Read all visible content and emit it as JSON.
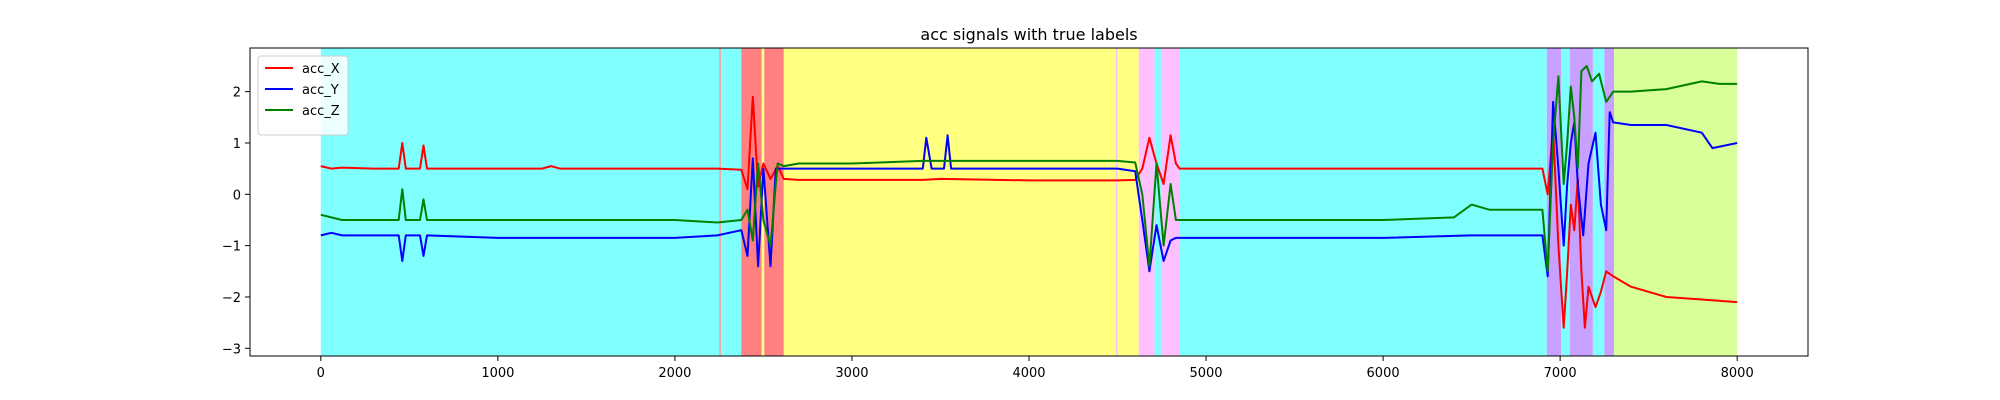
{
  "chart_data": {
    "type": "line",
    "title": "acc signals with true labels",
    "xlabel": "",
    "ylabel": "",
    "xlim": [
      -400,
      8400
    ],
    "ylim": [
      -3.15,
      2.85
    ],
    "x_ticks": [
      0,
      1000,
      2000,
      3000,
      4000,
      5000,
      6000,
      7000,
      8000
    ],
    "y_ticks": [
      -3,
      -2,
      -1,
      0,
      1,
      2
    ],
    "grid": false,
    "legend_position": "top-left",
    "label_bands": [
      {
        "start": 0,
        "end": 2250,
        "color": "#80ffff"
      },
      {
        "start": 2250,
        "end": 2260,
        "color": "#f4a0a0"
      },
      {
        "start": 2260,
        "end": 2375,
        "color": "#80ffff"
      },
      {
        "start": 2375,
        "end": 2490,
        "color": "#ff8080"
      },
      {
        "start": 2490,
        "end": 2505,
        "color": "#ffff80"
      },
      {
        "start": 2505,
        "end": 2615,
        "color": "#ff8080"
      },
      {
        "start": 2615,
        "end": 4490,
        "color": "#ffff80"
      },
      {
        "start": 4490,
        "end": 4500,
        "color": "#ffc0ff"
      },
      {
        "start": 4500,
        "end": 4620,
        "color": "#ffff80"
      },
      {
        "start": 4620,
        "end": 4710,
        "color": "#ffc0ff"
      },
      {
        "start": 4710,
        "end": 4745,
        "color": "#80ffff"
      },
      {
        "start": 4745,
        "end": 4850,
        "color": "#ffc0ff"
      },
      {
        "start": 4850,
        "end": 6925,
        "color": "#80ffff"
      },
      {
        "start": 6925,
        "end": 7005,
        "color": "#c8a0ff"
      },
      {
        "start": 7005,
        "end": 7055,
        "color": "#80ffff"
      },
      {
        "start": 7055,
        "end": 7185,
        "color": "#c8a0ff"
      },
      {
        "start": 7185,
        "end": 7250,
        "color": "#80ffff"
      },
      {
        "start": 7250,
        "end": 7305,
        "color": "#c8a0ff"
      },
      {
        "start": 7305,
        "end": 8000,
        "color": "#d8ff99"
      }
    ],
    "series": [
      {
        "name": "acc_X",
        "color": "#ff0000",
        "x": [
          0,
          60,
          120,
          300,
          440,
          460,
          480,
          560,
          580,
          600,
          1000,
          1250,
          1300,
          1350,
          2000,
          2240,
          2375,
          2410,
          2440,
          2470,
          2500,
          2540,
          2580,
          2615,
          2700,
          3000,
          3400,
          3500,
          4000,
          4500,
          4600,
          4640,
          4680,
          4720,
          4760,
          4800,
          4830,
          4850,
          5000,
          6000,
          6900,
          6930,
          6960,
          6990,
          7020,
          7040,
          7060,
          7080,
          7100,
          7120,
          7140,
          7160,
          7200,
          7230,
          7260,
          7300,
          7400,
          7600,
          7800,
          8000
        ],
        "y": [
          0.55,
          0.5,
          0.52,
          0.5,
          0.5,
          1.0,
          0.5,
          0.5,
          0.95,
          0.5,
          0.5,
          0.5,
          0.55,
          0.5,
          0.5,
          0.5,
          0.48,
          0.1,
          1.9,
          0.15,
          0.6,
          0.3,
          0.55,
          0.3,
          0.28,
          0.28,
          0.28,
          0.3,
          0.27,
          0.27,
          0.28,
          0.5,
          1.1,
          0.6,
          0.2,
          1.15,
          0.6,
          0.5,
          0.5,
          0.5,
          0.5,
          0.0,
          1.3,
          -1.0,
          -2.6,
          -1.5,
          -0.2,
          -0.7,
          0.3,
          -1.5,
          -2.6,
          -1.8,
          -2.2,
          -1.9,
          -1.5,
          -1.6,
          -1.8,
          -2.0,
          -2.05,
          -2.1
        ]
      },
      {
        "name": "acc_Y",
        "color": "#0000ff",
        "x": [
          0,
          60,
          120,
          300,
          440,
          460,
          480,
          560,
          580,
          600,
          1000,
          1300,
          2000,
          2240,
          2375,
          2410,
          2440,
          2470,
          2500,
          2540,
          2570,
          2615,
          2700,
          3000,
          3400,
          3420,
          3450,
          3520,
          3540,
          3560,
          4000,
          4500,
          4600,
          4640,
          4680,
          4720,
          4760,
          4800,
          4830,
          4850,
          5000,
          6000,
          6500,
          6900,
          6930,
          6960,
          6990,
          7020,
          7040,
          7060,
          7080,
          7100,
          7130,
          7160,
          7200,
          7230,
          7260,
          7280,
          7300,
          7400,
          7600,
          7800,
          7860,
          8000
        ],
        "y": [
          -0.8,
          -0.75,
          -0.8,
          -0.8,
          -0.8,
          -1.3,
          -0.8,
          -0.8,
          -1.2,
          -0.8,
          -0.85,
          -0.85,
          -0.85,
          -0.8,
          -0.7,
          -1.2,
          0.7,
          -1.4,
          0.5,
          -1.4,
          0.5,
          0.5,
          0.5,
          0.5,
          0.5,
          1.1,
          0.5,
          0.5,
          1.15,
          0.5,
          0.5,
          0.5,
          0.45,
          -0.5,
          -1.5,
          -0.6,
          -1.3,
          -0.9,
          -0.85,
          -0.85,
          -0.85,
          -0.85,
          -0.8,
          -0.8,
          -1.6,
          1.8,
          0.5,
          -1.0,
          0.2,
          1.0,
          1.4,
          0.2,
          -0.8,
          0.6,
          1.2,
          -0.2,
          -0.7,
          1.6,
          1.4,
          1.35,
          1.35,
          1.2,
          0.9,
          1.0
        ]
      },
      {
        "name": "acc_Z",
        "color": "#008000",
        "x": [
          0,
          60,
          120,
          300,
          440,
          460,
          480,
          560,
          580,
          600,
          1000,
          1300,
          2000,
          2240,
          2375,
          2410,
          2440,
          2470,
          2500,
          2540,
          2580,
          2615,
          2700,
          3000,
          3400,
          3500,
          4000,
          4500,
          4600,
          4640,
          4680,
          4720,
          4760,
          4800,
          4830,
          4850,
          5000,
          6000,
          6400,
          6500,
          6600,
          6900,
          6930,
          6960,
          6990,
          7020,
          7040,
          7060,
          7080,
          7100,
          7120,
          7150,
          7180,
          7220,
          7260,
          7300,
          7400,
          7600,
          7800,
          7900,
          8000
        ],
        "y": [
          -0.4,
          -0.45,
          -0.5,
          -0.5,
          -0.5,
          0.1,
          -0.5,
          -0.5,
          -0.1,
          -0.5,
          -0.5,
          -0.5,
          -0.5,
          -0.55,
          -0.5,
          -0.3,
          -0.9,
          0.6,
          -0.5,
          -1.0,
          0.6,
          0.55,
          0.6,
          0.6,
          0.65,
          0.65,
          0.65,
          0.65,
          0.62,
          0.0,
          -1.4,
          0.6,
          -1.0,
          0.2,
          -0.5,
          -0.5,
          -0.5,
          -0.5,
          -0.45,
          -0.2,
          -0.3,
          -0.3,
          -1.5,
          1.0,
          2.3,
          0.2,
          1.0,
          2.1,
          1.5,
          0.5,
          2.4,
          2.5,
          2.2,
          2.35,
          1.8,
          2.0,
          2.0,
          2.05,
          2.2,
          2.15,
          2.15
        ]
      }
    ]
  }
}
